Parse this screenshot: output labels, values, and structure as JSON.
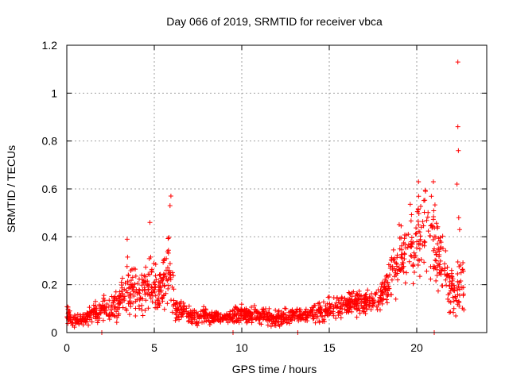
{
  "chart_data": {
    "type": "scatter",
    "title": "Day 066 of 2019, SRMTID for receiver vbca",
    "xlabel": "GPS time / hours",
    "ylabel": "SRMTID / TECUs",
    "xlim": [
      0,
      24
    ],
    "ylim": [
      0,
      1.2
    ],
    "x_ticks": [
      0,
      5,
      10,
      15,
      20
    ],
    "x_tick_labels": [
      "0",
      "5",
      "10",
      "15",
      "20"
    ],
    "y_ticks": [
      0,
      0.2,
      0.4,
      0.6,
      0.8,
      1.0,
      1.2
    ],
    "y_tick_labels": [
      "0",
      "0.2",
      "0.4",
      "0.6",
      "0.8",
      "1",
      "1.2"
    ],
    "grid": true,
    "marker": "+",
    "color": "#ff0000",
    "series": [
      {
        "name": "SRMTID",
        "profile_x": [
          0,
          0.3,
          0.7,
          1.2,
          1.7,
          2.0,
          2.5,
          3.0,
          3.3,
          3.6,
          4.0,
          4.5,
          4.8,
          5.2,
          5.6,
          5.9,
          6.2,
          6.5,
          7.0,
          7.5,
          8.0,
          9.0,
          10.0,
          11.0,
          12.0,
          13.0,
          14.0,
          14.5,
          15.0,
          15.5,
          16.0,
          16.5,
          17.0,
          17.5,
          18.0,
          18.5,
          19.0,
          19.5,
          20.0,
          20.3,
          20.6,
          21.0,
          21.3,
          21.6,
          21.9,
          22.2,
          22.5,
          22.7
        ],
        "profile_center": [
          0.08,
          0.05,
          0.05,
          0.07,
          0.09,
          0.11,
          0.1,
          0.12,
          0.18,
          0.2,
          0.16,
          0.18,
          0.22,
          0.17,
          0.22,
          0.26,
          0.1,
          0.09,
          0.07,
          0.07,
          0.07,
          0.06,
          0.08,
          0.07,
          0.06,
          0.07,
          0.08,
          0.09,
          0.1,
          0.11,
          0.12,
          0.13,
          0.12,
          0.14,
          0.16,
          0.22,
          0.3,
          0.36,
          0.4,
          0.43,
          0.42,
          0.38,
          0.3,
          0.25,
          0.18,
          0.16,
          0.2,
          0.2
        ],
        "profile_spread": [
          0.03,
          0.02,
          0.02,
          0.03,
          0.04,
          0.05,
          0.05,
          0.06,
          0.09,
          0.1,
          0.07,
          0.09,
          0.11,
          0.08,
          0.1,
          0.14,
          0.05,
          0.04,
          0.03,
          0.03,
          0.03,
          0.02,
          0.03,
          0.03,
          0.03,
          0.03,
          0.03,
          0.04,
          0.04,
          0.04,
          0.05,
          0.05,
          0.04,
          0.05,
          0.06,
          0.08,
          0.12,
          0.15,
          0.16,
          0.17,
          0.17,
          0.15,
          0.12,
          0.1,
          0.08,
          0.08,
          0.1,
          0.09
        ],
        "outliers": [
          {
            "x": 22.35,
            "y": 1.13
          },
          {
            "x": 22.35,
            "y": 0.86
          },
          {
            "x": 22.38,
            "y": 0.76
          },
          {
            "x": 22.3,
            "y": 0.62
          },
          {
            "x": 22.4,
            "y": 0.48
          },
          {
            "x": 22.45,
            "y": 0.43
          },
          {
            "x": 5.95,
            "y": 0.57
          },
          {
            "x": 5.9,
            "y": 0.53
          },
          {
            "x": 4.75,
            "y": 0.46
          },
          {
            "x": 3.45,
            "y": 0.39
          },
          {
            "x": 20.1,
            "y": 0.63
          },
          {
            "x": 20.95,
            "y": 0.63
          },
          {
            "x": 20.5,
            "y": 0.59
          },
          {
            "x": 2.0,
            "y": 0.0
          },
          {
            "x": 9.5,
            "y": 0.0
          },
          {
            "x": 13.2,
            "y": 0.0
          },
          {
            "x": 21.0,
            "y": 0.0
          }
        ]
      }
    ]
  }
}
